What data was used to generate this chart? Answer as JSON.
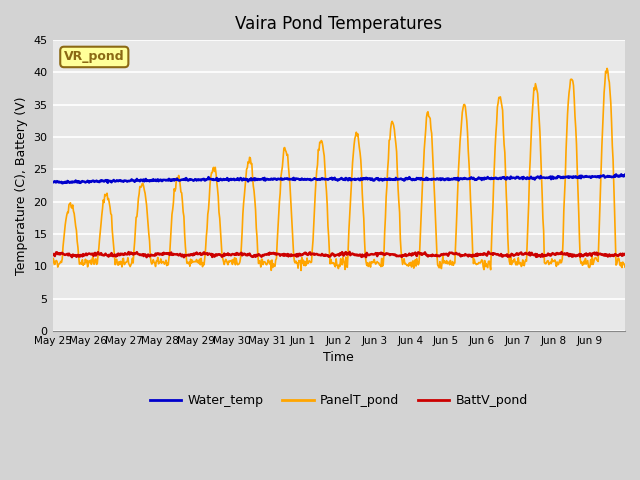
{
  "title": "Vaira Pond Temperatures",
  "xlabel": "Time",
  "ylabel": "Temperature (C), Battery (V)",
  "ylim": [
    0,
    45
  ],
  "yticks": [
    0,
    5,
    10,
    15,
    20,
    25,
    30,
    35,
    40,
    45
  ],
  "plot_bg_color": "#e8e8e8",
  "fig_bg_color": "#d3d3d3",
  "annotation_text": "VR_pond",
  "annotation_bg": "#ffff99",
  "annotation_border": "#8b6914",
  "water_temp_color": "#0000cc",
  "panel_temp_color": "#ffa500",
  "batt_color": "#cc0000",
  "legend_labels": [
    "Water_temp",
    "PanelT_pond",
    "BattV_pond"
  ],
  "x_tick_labels": [
    "May 25",
    "May 26",
    "May 27",
    "May 28",
    "May 29",
    "May 30",
    "May 31",
    "Jun 1",
    "Jun 2",
    "Jun 3",
    "Jun 4",
    "Jun 5",
    "Jun 6",
    "Jun 7",
    "Jun 8",
    "Jun 9"
  ],
  "num_days": 16
}
